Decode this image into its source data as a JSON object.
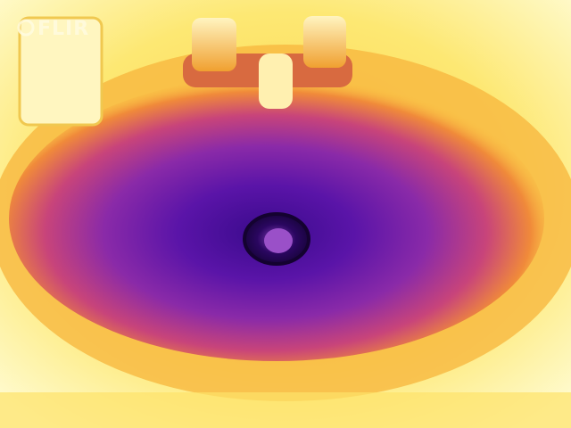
{
  "logo": "FLIR"
}
